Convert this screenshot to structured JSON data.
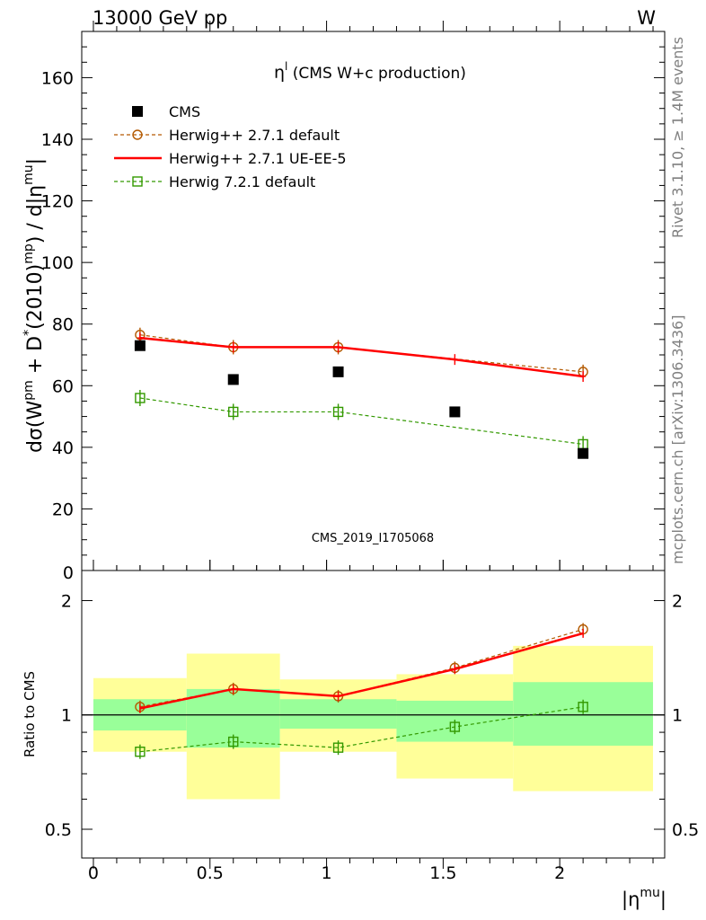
{
  "header": {
    "left": "13000 GeV pp",
    "right": "W"
  },
  "side_labels": {
    "rivet": "Rivet 3.1.10, ≥ 1.4M events",
    "mcplots": "mcplots.cern.ch [arXiv:1306.3436]"
  },
  "watermark": "CMS_2019_I1705068",
  "plot_title": {
    "main": "η",
    "sup": "l",
    "rest": " (CMS W+c production)"
  },
  "ylabel_main": {
    "p1": "dσ(W",
    "s1": "pm",
    "p2": " + D",
    "s2": "*",
    "p3": "(2010)",
    "s3": "mp",
    "p4": ") / d|η",
    "s4": "mu",
    "p5": "|"
  },
  "xlabel": {
    "main": "|η",
    "sup": "mu",
    "end": "|"
  },
  "ratio_ylabel": "Ratio to CMS",
  "colors": {
    "data": "#000000",
    "herwig_default": "#b35900",
    "ue_ee5": "#ff0000",
    "herwig72": "#339900",
    "band_inner": "#99ff99",
    "band_outer": "#ffff99"
  },
  "chart_data": {
    "type": "scatter",
    "x": [
      0.2,
      0.6,
      1.05,
      1.55,
      2.1
    ],
    "x_bins": [
      [
        0.0,
        0.4
      ],
      [
        0.4,
        0.8
      ],
      [
        0.8,
        1.3
      ],
      [
        1.3,
        1.8
      ],
      [
        1.8,
        2.4
      ]
    ],
    "xlim": [
      -0.05,
      2.45
    ],
    "xticks": [
      "0",
      "0.5",
      "1",
      "1.5",
      "2"
    ],
    "main": {
      "ylim": [
        0,
        175
      ],
      "yticks": [
        "20",
        "40",
        "60",
        "80",
        "100",
        "120",
        "140",
        "160"
      ],
      "series": [
        {
          "name": "CMS",
          "style": "square",
          "values": [
            73,
            62,
            64.5,
            51.5,
            38
          ]
        },
        {
          "name": "Herwig++ 2.7.1 default",
          "style": "circle",
          "values": [
            76.5,
            72.5,
            72.5,
            null,
            64.5
          ]
        },
        {
          "name": "Herwig++ 2.7.1 UE-EE-5",
          "style": "line",
          "values": [
            75.5,
            72.5,
            72.5,
            68.5,
            63
          ]
        },
        {
          "name": "Herwig 7.2.1 default",
          "style": "opensquare",
          "values": [
            56,
            51.5,
            51.5,
            null,
            41
          ]
        }
      ]
    },
    "ratio": {
      "ylog": true,
      "ylim": [
        0.42,
        2.4
      ],
      "yticks": [
        "0.5",
        "1",
        "2"
      ],
      "band_inner": [
        [
          0.91,
          1.1
        ],
        [
          0.82,
          1.17
        ],
        [
          0.92,
          1.1
        ],
        [
          0.85,
          1.09
        ],
        [
          0.83,
          1.22
        ]
      ],
      "band_outer": [
        [
          0.8,
          1.25
        ],
        [
          0.6,
          1.45
        ],
        [
          0.8,
          1.24
        ],
        [
          0.68,
          1.28
        ],
        [
          0.63,
          1.52
        ]
      ],
      "series": [
        {
          "name": "Herwig++ 2.7.1 default",
          "values": [
            1.05,
            1.17,
            1.12,
            1.33,
            1.68
          ]
        },
        {
          "name": "Herwig++ 2.7.1 UE-EE-5",
          "values": [
            1.04,
            1.17,
            1.12,
            1.32,
            1.64
          ]
        },
        {
          "name": "Herwig 7.2.1 default",
          "values": [
            0.8,
            0.85,
            0.82,
            0.93,
            1.05
          ]
        }
      ]
    }
  }
}
